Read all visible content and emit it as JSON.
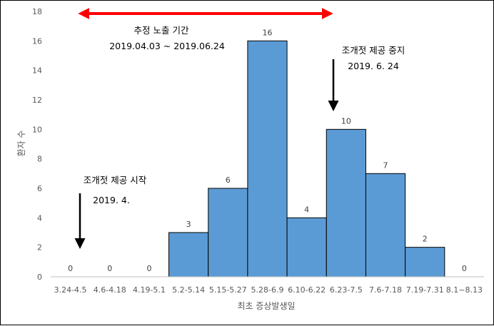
{
  "chart_data": {
    "type": "bar",
    "categories": [
      "3.24-4.5",
      "4.6-4.18",
      "4.19-5.1",
      "5.2-5.14",
      "5.15-5.27",
      "5.28-6.9",
      "6.10-6.22",
      "6.23-7.5",
      "7.6-7.18",
      "7.19-7.31",
      "8.1~8.13"
    ],
    "values": [
      0,
      0,
      0,
      3,
      6,
      16,
      4,
      10,
      7,
      2,
      0
    ],
    "xlabel": "최초 증상발생일",
    "ylabel": "환자 수",
    "ylim": [
      0,
      18
    ],
    "yticks": [
      0,
      2,
      4,
      6,
      8,
      10,
      12,
      14,
      16,
      18
    ],
    "grid": false,
    "bar_color": "#5b9bd5",
    "annotations": {
      "exposure_title": "추정 노출 기간",
      "exposure_range": "2019.04.03 ~ 2019.06.24",
      "exposure_arrow_color": "#ff0000",
      "start_title": "조개젓 제공 시작",
      "start_date": "2019. 4.",
      "stop_title": "조개젓 제공 중지",
      "stop_date": "2019. 6. 24"
    }
  }
}
